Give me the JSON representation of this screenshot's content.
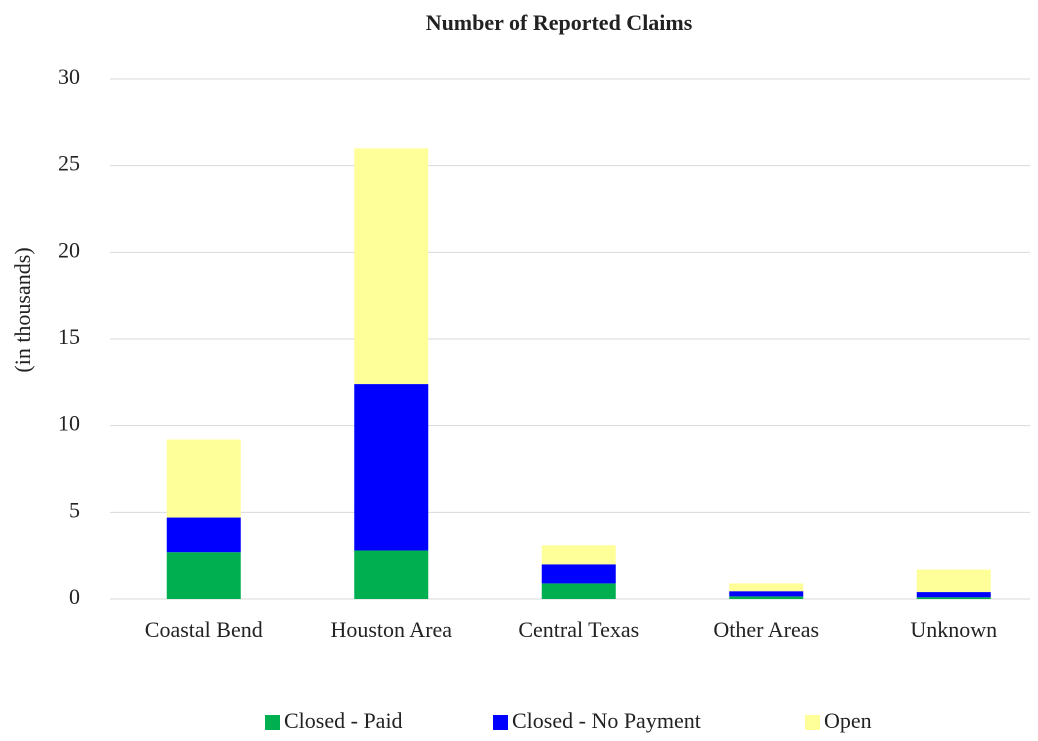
{
  "chart_data": {
    "type": "stacked_bar",
    "title": "Number of Reported Claims",
    "y_label": "(in thousands)",
    "categories": [
      "Coastal Bend",
      "Houston Area",
      "Central Texas",
      "Other Areas",
      "Unknown"
    ],
    "series": [
      {
        "name": "Closed - Paid",
        "color": "#00b050",
        "values": [
          2.7,
          2.8,
          0.9,
          0.15,
          0.1
        ]
      },
      {
        "name": "Closed - No Payment",
        "color": "#0000ff",
        "values": [
          2.0,
          9.6,
          1.1,
          0.3,
          0.3
        ]
      },
      {
        "name": "Open",
        "color": "#ffff99",
        "values": [
          4.5,
          13.6,
          1.1,
          0.45,
          1.3
        ]
      }
    ],
    "ylim": [
      0,
      30
    ],
    "yticks": [
      0,
      5,
      10,
      15,
      20,
      25,
      30
    ],
    "grid": true,
    "legend": "bottom"
  }
}
